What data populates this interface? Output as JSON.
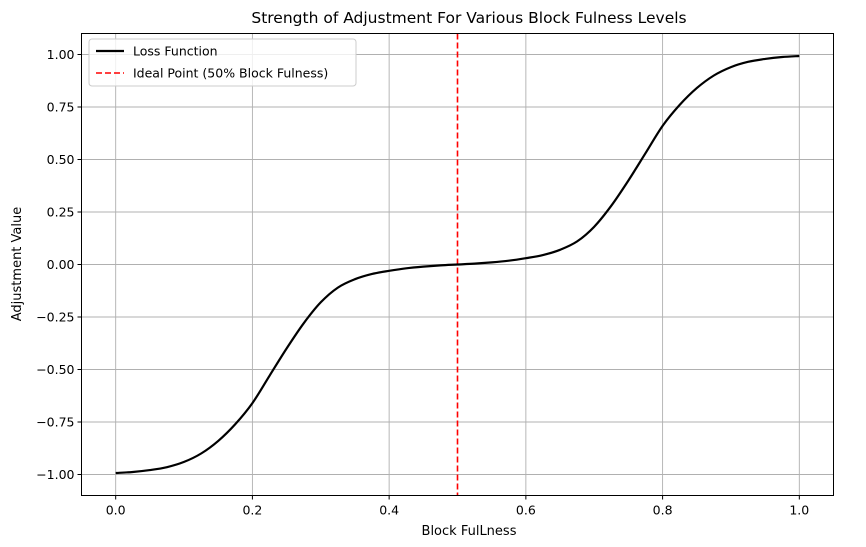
{
  "chart_data": {
    "type": "line",
    "title": "Strength of Adjustment For Various Block Fulness Levels",
    "xlabel": "Block FulLness",
    "ylabel": "Adjustment Value",
    "xlim": [
      -0.05,
      1.05
    ],
    "ylim": [
      -1.1,
      1.1
    ],
    "xticks": [
      0.0,
      0.2,
      0.4,
      0.6,
      0.8,
      1.0
    ],
    "xtick_labels": [
      "0.0",
      "0.2",
      "0.4",
      "0.6",
      "0.8",
      "1.0"
    ],
    "yticks": [
      -1.0,
      -0.75,
      -0.5,
      -0.25,
      0.0,
      0.25,
      0.5,
      0.75,
      1.0
    ],
    "ytick_labels": [
      "−1.00",
      "−0.75",
      "−0.50",
      "−0.25",
      "0.00",
      "0.25",
      "0.50",
      "0.75",
      "1.00"
    ],
    "grid": true,
    "legend_position": "top-left",
    "series": [
      {
        "name": "Loss Function",
        "color": "#000000",
        "style": "solid",
        "x": [
          0.0,
          0.025,
          0.05,
          0.075,
          0.1,
          0.125,
          0.15,
          0.175,
          0.2,
          0.225,
          0.25,
          0.275,
          0.3,
          0.325,
          0.35,
          0.375,
          0.4,
          0.425,
          0.45,
          0.475,
          0.5,
          0.525,
          0.55,
          0.575,
          0.6,
          0.625,
          0.65,
          0.675,
          0.7,
          0.725,
          0.75,
          0.775,
          0.8,
          0.825,
          0.85,
          0.875,
          0.9,
          0.925,
          0.95,
          0.975,
          1.0
        ],
        "y": [
          -0.993,
          -0.988,
          -0.979,
          -0.965,
          -0.94,
          -0.9,
          -0.84,
          -0.76,
          -0.66,
          -0.53,
          -0.4,
          -0.28,
          -0.18,
          -0.11,
          -0.07,
          -0.045,
          -0.03,
          -0.018,
          -0.01,
          -0.004,
          0.0,
          0.004,
          0.01,
          0.018,
          0.03,
          0.045,
          0.07,
          0.11,
          0.18,
          0.28,
          0.4,
          0.53,
          0.66,
          0.76,
          0.84,
          0.9,
          0.94,
          0.965,
          0.979,
          0.988,
          0.993
        ]
      }
    ],
    "vlines": [
      {
        "name": "Ideal Point (50% Block Fulness)",
        "x": 0.5,
        "color": "#ff0000",
        "style": "dashed"
      }
    ]
  }
}
